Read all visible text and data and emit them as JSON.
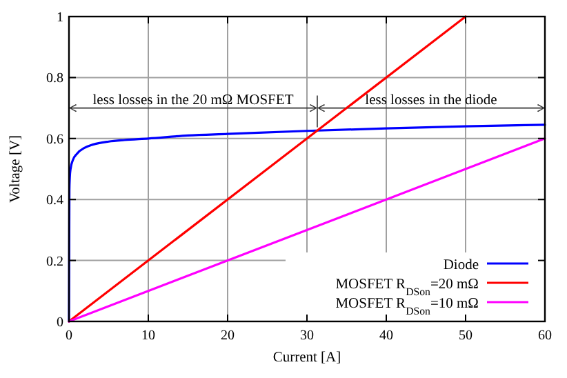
{
  "chart_data": {
    "type": "line",
    "xlabel": "Current [A]",
    "ylabel": "Voltage [V]",
    "xlim": [
      0,
      60
    ],
    "ylim": [
      0,
      1
    ],
    "xticks": [
      0,
      10,
      20,
      30,
      40,
      50,
      60
    ],
    "yticks": [
      0,
      0.2,
      0.4,
      0.6,
      0.8,
      1
    ],
    "grid": true,
    "legend": "bottom right",
    "series": [
      {
        "name": "Diode",
        "color": "#0000ff",
        "x": [
          0,
          0.05,
          0.1,
          0.2,
          0.5,
          1,
          2,
          3,
          5,
          7,
          10,
          15,
          20,
          30,
          40,
          50,
          60
        ],
        "values": [
          0,
          0.43,
          0.47,
          0.5,
          0.53,
          0.55,
          0.57,
          0.58,
          0.59,
          0.595,
          0.6,
          0.61,
          0.615,
          0.625,
          0.633,
          0.64,
          0.645
        ]
      },
      {
        "name": "MOSFET R$_{DSon}$=20 mΩ",
        "color": "#ff0000",
        "x": [
          0,
          50
        ],
        "values": [
          0,
          1
        ]
      },
      {
        "name": "MOSFET R$_{DSon}$=10 mΩ",
        "color": "#ff00ff",
        "x": [
          0,
          60
        ],
        "values": [
          0,
          0.6
        ]
      }
    ],
    "annotations": [
      "less losses in the 20 mΩ MOSFET",
      "less losses in the diode"
    ]
  }
}
